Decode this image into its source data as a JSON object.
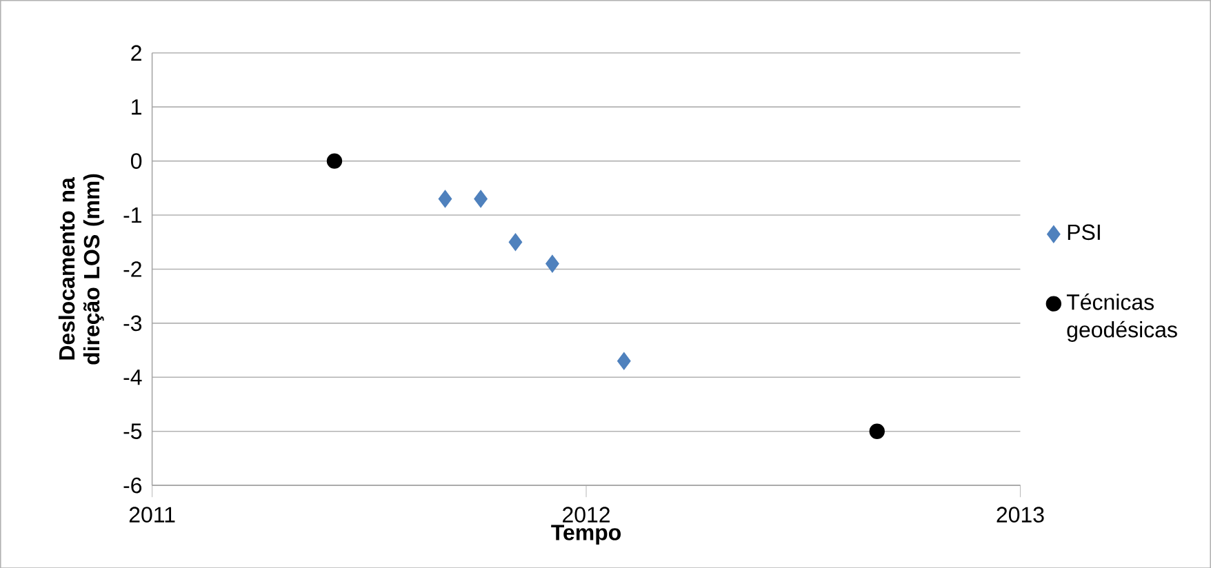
{
  "chart_data": {
    "type": "scatter",
    "xlabel": "Tempo",
    "ylabel": "Deslocamento na direção LOS (mm)",
    "xlim": [
      2011,
      2013
    ],
    "xticks": [
      2011,
      2012,
      2013
    ],
    "ylim": [
      -6,
      2
    ],
    "yticks": [
      -6,
      -5,
      -4,
      -3,
      -2,
      -1,
      0,
      1,
      2
    ],
    "grid": "y",
    "legend": "right",
    "series": [
      {
        "name": "PSI",
        "color": "#4f81bd",
        "marker": "diamond",
        "x": [
          2011.675,
          2011.757,
          2011.837,
          2011.922,
          2012.087
        ],
        "values": [
          -0.7,
          -0.7,
          -1.5,
          -1.9,
          -3.7
        ]
      },
      {
        "name": "Técnicas geodésicas",
        "color": "#000000",
        "marker": "circle",
        "x": [
          2011.42,
          2012.67
        ],
        "values": [
          0,
          -5
        ]
      }
    ]
  }
}
